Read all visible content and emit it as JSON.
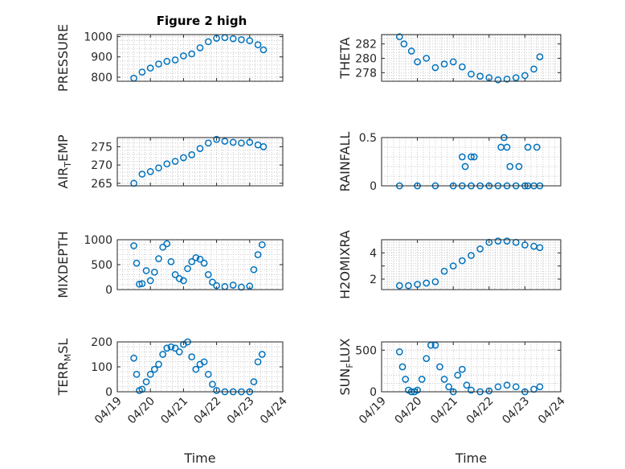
{
  "figure_title": "Figure 2 high",
  "colors": {
    "marker": "#0072BD",
    "axis": "#262626",
    "grid": "#bdbdbd"
  },
  "chart_data": [
    {
      "id": "pressure",
      "type": "scatter",
      "title": "Figure 2 high",
      "ylabel": "PRESSURE",
      "xlabel": "",
      "xlim": [
        "04/19",
        "04/24"
      ],
      "ylim": [
        780,
        1010
      ],
      "yticks": [
        800,
        900,
        1000
      ],
      "xtick_labels_visible": false,
      "grid": true,
      "x": [
        "04/19 12:00",
        "04/19 18:00",
        "04/20 00:00",
        "04/20 06:00",
        "04/20 12:00",
        "04/20 18:00",
        "04/21 00:00",
        "04/21 06:00",
        "04/21 12:00",
        "04/21 18:00",
        "04/22 00:00",
        "04/22 06:00",
        "04/22 12:00",
        "04/22 18:00",
        "04/23 00:00",
        "04/23 06:00",
        "04/23 10:00"
      ],
      "y": [
        795,
        825,
        845,
        865,
        878,
        885,
        905,
        915,
        945,
        975,
        992,
        995,
        990,
        985,
        980,
        960,
        935
      ]
    },
    {
      "id": "theta",
      "type": "scatter",
      "ylabel": "THETA",
      "xlabel": "",
      "xlim": [
        "04/19",
        "04/24"
      ],
      "ylim": [
        276.8,
        283.3
      ],
      "yticks": [
        278,
        280,
        282
      ],
      "xtick_labels_visible": false,
      "grid": true,
      "x": [
        "04/19 12:00",
        "04/19 15:00",
        "04/19 20:00",
        "04/20 00:00",
        "04/20 06:00",
        "04/20 12:00",
        "04/20 18:00",
        "04/21 00:00",
        "04/21 06:00",
        "04/21 12:00",
        "04/21 18:00",
        "04/22 00:00",
        "04/22 06:00",
        "04/22 12:00",
        "04/22 18:00",
        "04/23 00:00",
        "04/23 06:00",
        "04/23 10:00"
      ],
      "y": [
        283,
        282,
        281,
        279.5,
        280,
        278.7,
        279.2,
        279.5,
        278.8,
        277.8,
        277.5,
        277.3,
        277.0,
        277.1,
        277.3,
        277.6,
        278.5,
        280.2
      ]
    },
    {
      "id": "air_temp",
      "type": "scatter",
      "ylabel": "AIR_TEMP",
      "ylabel_parts": [
        "AIR",
        "T",
        "EMP"
      ],
      "xlabel": "",
      "xlim": [
        "04/19",
        "04/24"
      ],
      "ylim": [
        264.3,
        277.5
      ],
      "yticks": [
        265,
        270,
        275
      ],
      "xtick_labels_visible": false,
      "grid": true,
      "x": [
        "04/19 12:00",
        "04/19 18:00",
        "04/20 00:00",
        "04/20 06:00",
        "04/20 12:00",
        "04/20 18:00",
        "04/21 00:00",
        "04/21 06:00",
        "04/21 12:00",
        "04/21 18:00",
        "04/22 00:00",
        "04/22 06:00",
        "04/22 12:00",
        "04/22 18:00",
        "04/23 00:00",
        "04/23 06:00",
        "04/23 10:00"
      ],
      "y": [
        265,
        267.5,
        268.2,
        269.2,
        270.3,
        271,
        272,
        272.8,
        274.5,
        276,
        277,
        276.5,
        276.2,
        276,
        276.2,
        275.5,
        275
      ]
    },
    {
      "id": "rainfall",
      "type": "scatter",
      "ylabel": "RAINFALL",
      "xlabel": "",
      "xlim": [
        "04/19",
        "04/24"
      ],
      "ylim": [
        0,
        0.5
      ],
      "yticks": [
        0,
        0.5
      ],
      "xtick_labels_visible": false,
      "grid": true,
      "x": [
        "04/19 12:00",
        "04/20 00:00",
        "04/20 12:00",
        "04/21 00:00",
        "04/21 06:00",
        "04/21 12:00",
        "04/21 18:00",
        "04/22 00:00",
        "04/22 06:00",
        "04/22 12:00",
        "04/22 18:00",
        "04/23 00:00",
        "04/23 06:00",
        "04/23 10:00",
        "04/21 06:00",
        "04/21 08:00",
        "04/21 12:00",
        "04/21 14:00",
        "04/22 08:00",
        "04/22 10:00",
        "04/22 12:00",
        "04/22 14:00",
        "04/22 20:00",
        "04/23 02:00",
        "04/23 08:00",
        "04/23 02:00"
      ],
      "y": [
        0,
        0,
        0,
        0,
        0,
        0,
        0,
        0,
        0,
        0,
        0,
        0,
        0,
        0,
        0.3,
        0.2,
        0.3,
        0.3,
        0.4,
        0.5,
        0.4,
        0.2,
        0.2,
        0.4,
        0.4,
        0
      ]
    },
    {
      "id": "mixdepth",
      "type": "scatter",
      "ylabel": "MIXDEPTH",
      "xlabel": "",
      "xlim": [
        "04/19",
        "04/24"
      ],
      "ylim": [
        0,
        1000
      ],
      "yticks": [
        0,
        500,
        1000
      ],
      "xtick_labels_visible": false,
      "grid": true,
      "x": [
        "04/19 12:00",
        "04/19 14:00",
        "04/19 16:00",
        "04/19 18:00",
        "04/19 21:00",
        "04/20 00:00",
        "04/20 03:00",
        "04/20 06:00",
        "04/20 09:00",
        "04/20 12:00",
        "04/20 15:00",
        "04/20 18:00",
        "04/20 21:00",
        "04/21 00:00",
        "04/21 03:00",
        "04/21 06:00",
        "04/21 09:00",
        "04/21 12:00",
        "04/21 15:00",
        "04/21 18:00",
        "04/21 21:00",
        "04/22 00:00",
        "04/22 06:00",
        "04/22 12:00",
        "04/22 18:00",
        "04/23 00:00",
        "04/23 03:00",
        "04/23 06:00",
        "04/23 09:00"
      ],
      "y": [
        880,
        530,
        110,
        120,
        380,
        180,
        350,
        620,
        850,
        920,
        560,
        300,
        220,
        180,
        420,
        560,
        640,
        610,
        530,
        300,
        150,
        80,
        60,
        90,
        50,
        70,
        400,
        700,
        900
      ]
    },
    {
      "id": "h2omixra",
      "type": "scatter",
      "ylabel": "H2OMIXRA",
      "xlabel": "",
      "xlim": [
        "04/19",
        "04/24"
      ],
      "ylim": [
        1.2,
        5.0
      ],
      "yticks": [
        2,
        3,
        4
      ],
      "ytick_labels": [
        "2",
        "",
        "4"
      ],
      "xtick_labels_visible": false,
      "grid": true,
      "x": [
        "04/19 12:00",
        "04/19 18:00",
        "04/20 00:00",
        "04/20 06:00",
        "04/20 12:00",
        "04/20 18:00",
        "04/21 00:00",
        "04/21 06:00",
        "04/21 12:00",
        "04/21 18:00",
        "04/22 00:00",
        "04/22 06:00",
        "04/22 12:00",
        "04/22 18:00",
        "04/23 00:00",
        "04/23 06:00",
        "04/23 10:00"
      ],
      "y": [
        1.5,
        1.5,
        1.6,
        1.7,
        1.8,
        2.6,
        3.0,
        3.4,
        3.8,
        4.3,
        4.8,
        4.9,
        4.9,
        4.8,
        4.6,
        4.5,
        4.4
      ]
    },
    {
      "id": "terr_msl",
      "type": "scatter",
      "ylabel": "TERR_MSL",
      "ylabel_parts": [
        "TERR",
        "M",
        "SL"
      ],
      "xlabel": "Time",
      "xlim": [
        "04/19",
        "04/24"
      ],
      "ylim": [
        0,
        200
      ],
      "yticks": [
        0,
        100,
        200
      ],
      "xticks": [
        "04/19",
        "04/20",
        "04/21",
        "04/22",
        "04/23",
        "04/24"
      ],
      "grid": true,
      "x": [
        "04/19 12:00",
        "04/19 14:00",
        "04/19 16:00",
        "04/19 18:00",
        "04/19 21:00",
        "04/20 00:00",
        "04/20 03:00",
        "04/20 06:00",
        "04/20 09:00",
        "04/20 12:00",
        "04/20 15:00",
        "04/20 18:00",
        "04/20 21:00",
        "04/21 00:00",
        "04/21 03:00",
        "04/21 06:00",
        "04/21 09:00",
        "04/21 12:00",
        "04/21 15:00",
        "04/21 18:00",
        "04/21 21:00",
        "04/22 00:00",
        "04/22 06:00",
        "04/22 12:00",
        "04/22 18:00",
        "04/23 00:00",
        "04/23 03:00",
        "04/23 06:00",
        "04/23 09:00"
      ],
      "y": [
        135,
        70,
        5,
        10,
        40,
        70,
        90,
        110,
        150,
        175,
        180,
        175,
        160,
        190,
        200,
        140,
        90,
        110,
        120,
        70,
        30,
        5,
        0,
        0,
        0,
        0,
        40,
        120,
        150
      ]
    },
    {
      "id": "sun_flux",
      "type": "scatter",
      "ylabel": "SUN_FLUX",
      "ylabel_parts": [
        "SUN",
        "F",
        "LUX"
      ],
      "xlabel": "Time",
      "xlim": [
        "04/19",
        "04/24"
      ],
      "ylim": [
        0,
        600
      ],
      "yticks": [
        0,
        500
      ],
      "xticks": [
        "04/19",
        "04/20",
        "04/21",
        "04/22",
        "04/23",
        "04/24"
      ],
      "grid": true,
      "x": [
        "04/19 12:00",
        "04/19 14:00",
        "04/19 16:00",
        "04/19 18:00",
        "04/19 20:00",
        "04/19 22:00",
        "04/20 00:00",
        "04/20 03:00",
        "04/20 06:00",
        "04/20 09:00",
        "04/20 12:00",
        "04/20 15:00",
        "04/20 18:00",
        "04/20 21:00",
        "04/21 00:00",
        "04/21 03:00",
        "04/21 06:00",
        "04/21 09:00",
        "04/21 12:00",
        "04/21 18:00",
        "04/22 00:00",
        "04/22 06:00",
        "04/22 12:00",
        "04/22 18:00",
        "04/23 00:00",
        "04/23 06:00",
        "04/23 10:00"
      ],
      "y": [
        480,
        300,
        150,
        20,
        0,
        0,
        20,
        150,
        400,
        560,
        560,
        300,
        150,
        60,
        0,
        200,
        270,
        80,
        20,
        0,
        10,
        60,
        80,
        60,
        0,
        30,
        60
      ]
    }
  ]
}
